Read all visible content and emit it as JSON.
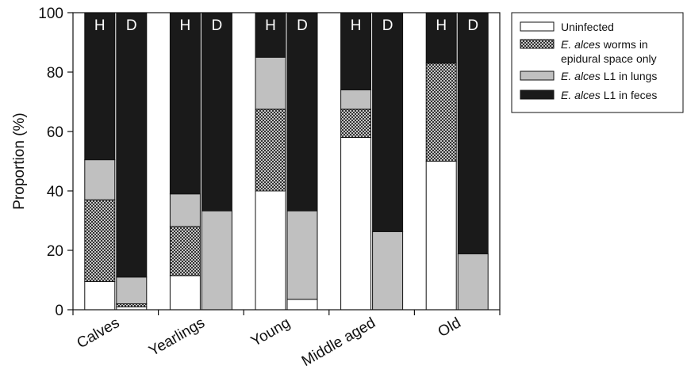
{
  "chart_data": {
    "type": "bar",
    "stacked": true,
    "categories": [
      "Calves",
      "Yearlings",
      "Young",
      "Middle aged",
      "Old"
    ],
    "bar_labels": [
      "H",
      "D"
    ],
    "ylabel": "Proportion (%)",
    "ylim": [
      0,
      100
    ],
    "yticks": [
      0,
      20,
      40,
      60,
      80,
      100
    ],
    "xlabel": "",
    "legend_position": "top-right",
    "series": [
      {
        "key": "uninfected",
        "legend": [
          {
            "text": "Uninfected",
            "italic": false
          }
        ],
        "color": "#ffffff",
        "pattern": "solid",
        "H": [
          9.5,
          11.5,
          40,
          58,
          50
        ],
        "D": [
          1.0,
          0,
          3.5,
          0,
          0
        ]
      },
      {
        "key": "epidural",
        "legend": [
          {
            "text": "E. alces",
            "italic": true
          },
          {
            "text": " worms in",
            "italic": false
          },
          {
            "text": "epidural space only",
            "italic": false,
            "newline": true
          }
        ],
        "color": "#222222",
        "pattern": "crosshatch",
        "H": [
          27.5,
          16.5,
          27.5,
          9.5,
          33
        ],
        "D": [
          1.0,
          0,
          0,
          0,
          0
        ]
      },
      {
        "key": "lungs",
        "legend": [
          {
            "text": "E. alces",
            "italic": true
          },
          {
            "text": " L1 in lungs",
            "italic": false
          }
        ],
        "color": "#c0c0c0",
        "pattern": "solid",
        "H": [
          13.5,
          11,
          17.5,
          6.5,
          0
        ],
        "D": [
          9.0,
          33.3,
          29.8,
          26.3,
          18.8
        ]
      },
      {
        "key": "feces",
        "legend": [
          {
            "text": "E. alces",
            "italic": true
          },
          {
            "text": " L1 in feces",
            "italic": false
          }
        ],
        "color": "#1a1a1a",
        "pattern": "solid",
        "H": [
          49.5,
          61,
          15,
          26,
          17
        ],
        "D": [
          89.0,
          66.7,
          66.7,
          73.7,
          81.2
        ]
      }
    ]
  }
}
